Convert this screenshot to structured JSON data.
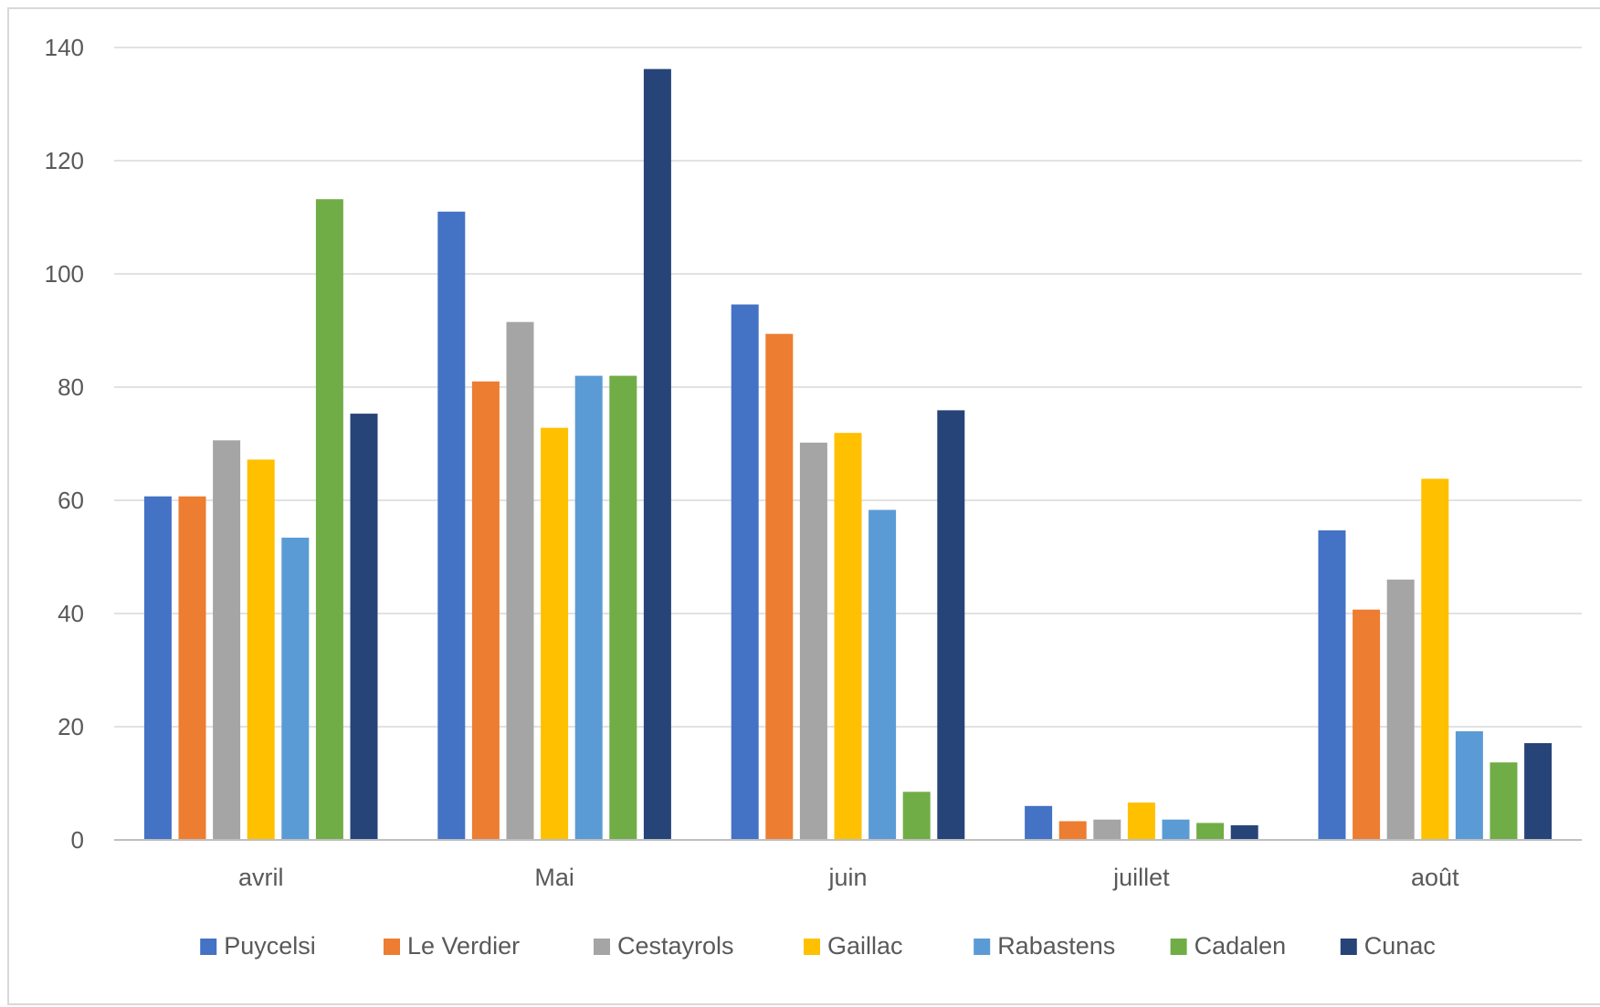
{
  "chart_data": {
    "type": "bar",
    "title": "",
    "xlabel": "",
    "ylabel": "",
    "ylim": [
      0,
      140
    ],
    "yticks": [
      0,
      20,
      40,
      60,
      80,
      100,
      120,
      140
    ],
    "grid": true,
    "legend_position": "bottom",
    "categories": [
      "avril",
      "Mai",
      "juin",
      "juillet",
      "août"
    ],
    "series": [
      {
        "name": "Puycelsi",
        "color": "#4472C4",
        "values": [
          60.7,
          111,
          94.6,
          6,
          54.7
        ]
      },
      {
        "name": "Le Verdier",
        "color": "#ED7D31",
        "values": [
          60.7,
          81,
          89.4,
          3.3,
          40.7
        ]
      },
      {
        "name": "Cestayrols",
        "color": "#A5A5A5",
        "values": [
          70.6,
          91.5,
          70.2,
          3.6,
          46
        ]
      },
      {
        "name": "Gaillac",
        "color": "#FFC000",
        "values": [
          67.2,
          72.8,
          71.9,
          6.6,
          63.8
        ]
      },
      {
        "name": "Rabastens",
        "color": "#5B9BD5",
        "values": [
          53.4,
          82,
          58.3,
          3.6,
          19.2
        ]
      },
      {
        "name": "Cadalen",
        "color": "#70AD47",
        "values": [
          113.2,
          82,
          8.5,
          3,
          13.7
        ]
      },
      {
        "name": "Cunac",
        "color": "#264478",
        "values": [
          75.3,
          136.2,
          75.9,
          2.6,
          17.1
        ]
      }
    ]
  }
}
